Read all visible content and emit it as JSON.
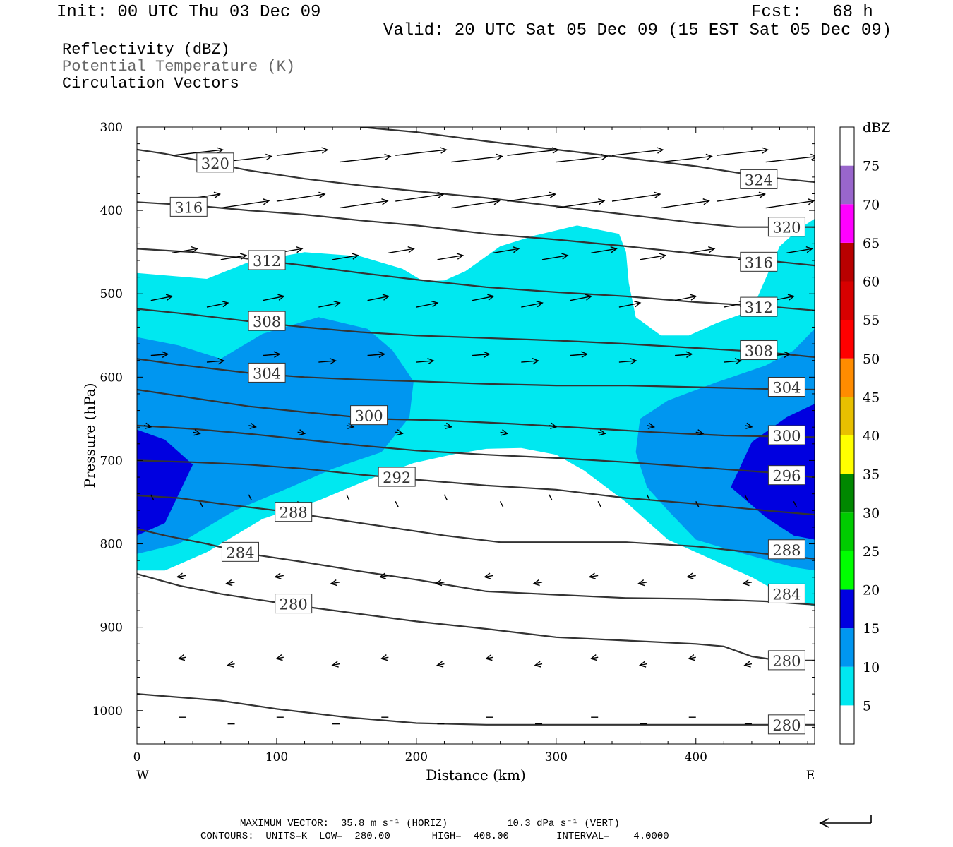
{
  "header": {
    "init": "Init: 00 UTC Thu 03 Dec 09",
    "fcst": "Fcst:   68 h",
    "valid": "Valid: 20 UTC Sat 05 Dec 09 (15 EST Sat 05 Dec 09)"
  },
  "fields": {
    "reflectivity": "Reflectivity (dBZ)",
    "theta": "Potential Temperature (K)",
    "vectors": "Circulation Vectors"
  },
  "footer": {
    "line1": "MAXIMUM VECTOR:  35.8 m s⁻¹ (HORIZ)          10.3 dPa s⁻¹ (VERT)",
    "line2": "CONTOURS:  UNITS=K  LOW=  280.00       HIGH=  408.00        INTERVAL=    4.0000"
  },
  "colors": {
    "c5": "#00e8f0",
    "c10": "#0096f0",
    "c15": "#0000e0",
    "contour": "#333333"
  },
  "chart_data": {
    "type": "cross-section",
    "xlabel": "Distance (km)",
    "ylabel": "Pressure (hPa)",
    "x_ticks": [
      0,
      100,
      200,
      300,
      400
    ],
    "x_end_labels": [
      "W",
      "E"
    ],
    "y_ticks": [
      300,
      400,
      500,
      600,
      700,
      800,
      900,
      1000
    ],
    "xlim": [
      0,
      485
    ],
    "ylim": [
      1040,
      300
    ],
    "colorbar": {
      "unit": "dBZ",
      "levels": [
        5,
        10,
        15,
        20,
        25,
        30,
        35,
        40,
        45,
        50,
        55,
        60,
        65,
        70,
        75
      ],
      "colors": [
        "#00e8f0",
        "#0096f0",
        "#0000e0",
        "#00ff00",
        "#00cc00",
        "#008800",
        "#ffff00",
        "#e8c000",
        "#ff8c00",
        "#ff0000",
        "#d80000",
        "#b80000",
        "#ff00ff",
        "#9966cc",
        "#ffffff"
      ]
    },
    "reflectivity_regions": [
      {
        "dbz": 5,
        "points": [
          [
            0,
            475
          ],
          [
            50,
            482
          ],
          [
            80,
            462
          ],
          [
            120,
            450
          ],
          [
            160,
            455
          ],
          [
            190,
            470
          ],
          [
            205,
            485
          ],
          [
            220,
            484
          ],
          [
            235,
            473
          ],
          [
            260,
            443
          ],
          [
            285,
            430
          ],
          [
            315,
            418
          ],
          [
            345,
            428
          ],
          [
            350,
            450
          ],
          [
            352,
            487
          ],
          [
            357,
            528
          ],
          [
            375,
            550
          ],
          [
            395,
            550
          ],
          [
            415,
            535
          ],
          [
            440,
            520
          ],
          [
            460,
            443
          ],
          [
            474,
            422
          ],
          [
            485,
            410
          ],
          [
            485,
            875
          ],
          [
            470,
            868
          ],
          [
            440,
            840
          ],
          [
            380,
            795
          ],
          [
            350,
            750
          ],
          [
            320,
            712
          ],
          [
            300,
            693
          ],
          [
            275,
            685
          ],
          [
            250,
            686
          ],
          [
            228,
            692
          ],
          [
            198,
            703
          ],
          [
            170,
            720
          ],
          [
            130,
            748
          ],
          [
            90,
            770
          ],
          [
            50,
            810
          ],
          [
            20,
            832
          ],
          [
            0,
            832
          ]
        ]
      },
      {
        "dbz": 10,
        "points": [
          [
            0,
            552
          ],
          [
            30,
            562
          ],
          [
            60,
            578
          ],
          [
            90,
            548
          ],
          [
            130,
            528
          ],
          [
            165,
            542
          ],
          [
            183,
            568
          ],
          [
            198,
            605
          ],
          [
            195,
            648
          ],
          [
            175,
            690
          ],
          [
            140,
            710
          ],
          [
            110,
            732
          ],
          [
            70,
            760
          ],
          [
            30,
            800
          ],
          [
            0,
            812
          ],
          [
            0,
            552
          ]
        ]
      },
      {
        "dbz": 10,
        "points": [
          [
            485,
            542
          ],
          [
            470,
            568
          ],
          [
            450,
            586
          ],
          [
            415,
            606
          ],
          [
            380,
            628
          ],
          [
            360,
            650
          ],
          [
            357,
            690
          ],
          [
            365,
            732
          ],
          [
            380,
            760
          ],
          [
            400,
            795
          ],
          [
            430,
            810
          ],
          [
            470,
            828
          ],
          [
            485,
            832
          ]
        ]
      },
      {
        "dbz": 15,
        "points": [
          [
            0,
            663
          ],
          [
            20,
            675
          ],
          [
            40,
            705
          ],
          [
            20,
            775
          ],
          [
            0,
            790
          ]
        ]
      },
      {
        "dbz": 15,
        "points": [
          [
            485,
            632
          ],
          [
            465,
            648
          ],
          [
            440,
            678
          ],
          [
            425,
            732
          ],
          [
            450,
            768
          ],
          [
            470,
            790
          ],
          [
            485,
            795
          ]
        ]
      }
    ],
    "theta_contours": [
      {
        "value": 280,
        "points": [
          [
            0,
            980
          ],
          [
            60,
            988
          ],
          [
            100,
            998
          ],
          [
            150,
            1008
          ],
          [
            200,
            1015
          ],
          [
            250,
            1017
          ],
          [
            300,
            1017
          ],
          [
            350,
            1017
          ],
          [
            400,
            1017
          ],
          [
            450,
            1017
          ],
          [
            485,
            1017
          ]
        ],
        "labels": [
          [
            465,
            1017
          ]
        ]
      },
      {
        "value": 280,
        "points": [
          [
            0,
            836
          ],
          [
            30,
            850
          ],
          [
            60,
            860
          ],
          [
            110,
            873
          ],
          [
            150,
            882
          ],
          [
            200,
            893
          ],
          [
            250,
            902
          ],
          [
            300,
            912
          ],
          [
            350,
            916
          ],
          [
            400,
            920
          ],
          [
            420,
            923
          ],
          [
            440,
            935
          ],
          [
            460,
            940
          ],
          [
            485,
            940
          ]
        ],
        "labels": [
          [
            112,
            872
          ],
          [
            465,
            940
          ]
        ]
      },
      {
        "value": 284,
        "points": [
          [
            0,
            782
          ],
          [
            20,
            790
          ],
          [
            50,
            800
          ],
          [
            80,
            812
          ],
          [
            120,
            822
          ],
          [
            160,
            833
          ],
          [
            200,
            843
          ],
          [
            250,
            857
          ],
          [
            300,
            861
          ],
          [
            350,
            865
          ],
          [
            400,
            866
          ],
          [
            450,
            869
          ],
          [
            485,
            873
          ]
        ],
        "labels": [
          [
            74,
            810
          ],
          [
            465,
            860
          ]
        ]
      },
      {
        "value": 288,
        "points": [
          [
            0,
            742
          ],
          [
            30,
            745
          ],
          [
            60,
            752
          ],
          [
            100,
            760
          ],
          [
            140,
            770
          ],
          [
            180,
            780
          ],
          [
            220,
            790
          ],
          [
            260,
            798
          ],
          [
            300,
            798
          ],
          [
            350,
            798
          ],
          [
            400,
            803
          ],
          [
            450,
            812
          ],
          [
            485,
            818
          ]
        ],
        "labels": [
          [
            112,
            762
          ],
          [
            465,
            807
          ]
        ]
      },
      {
        "value": 292,
        "points": [
          [
            0,
            700
          ],
          [
            40,
            702
          ],
          [
            80,
            705
          ],
          [
            120,
            710
          ],
          [
            160,
            717
          ],
          [
            200,
            723
          ],
          [
            250,
            730
          ],
          [
            300,
            735
          ],
          [
            350,
            745
          ],
          [
            400,
            752
          ],
          [
            450,
            760
          ],
          [
            485,
            765
          ]
        ],
        "labels": [
          [
            186,
            720
          ]
        ]
      },
      {
        "value": 296,
        "points": [
          [
            0,
            658
          ],
          [
            40,
            662
          ],
          [
            80,
            668
          ],
          [
            120,
            675
          ],
          [
            160,
            682
          ],
          [
            200,
            688
          ],
          [
            250,
            693
          ],
          [
            300,
            697
          ],
          [
            350,
            702
          ],
          [
            400,
            708
          ],
          [
            450,
            714
          ],
          [
            485,
            720
          ]
        ],
        "labels": [
          [
            465,
            718
          ]
        ]
      },
      {
        "value": 300,
        "points": [
          [
            0,
            615
          ],
          [
            40,
            625
          ],
          [
            80,
            635
          ],
          [
            120,
            642
          ],
          [
            170,
            650
          ],
          [
            220,
            652
          ],
          [
            270,
            656
          ],
          [
            320,
            661
          ],
          [
            370,
            666
          ],
          [
            420,
            670
          ],
          [
            485,
            672
          ]
        ],
        "labels": [
          [
            166,
            646
          ],
          [
            465,
            670
          ]
        ]
      },
      {
        "value": 304,
        "points": [
          [
            0,
            578
          ],
          [
            30,
            585
          ],
          [
            80,
            595
          ],
          [
            120,
            600
          ],
          [
            160,
            603
          ],
          [
            200,
            605
          ],
          [
            250,
            608
          ],
          [
            300,
            610
          ],
          [
            350,
            610
          ],
          [
            400,
            612
          ],
          [
            450,
            614
          ],
          [
            485,
            615
          ]
        ],
        "labels": [
          [
            93,
            595
          ],
          [
            465,
            612
          ]
        ]
      },
      {
        "value": 308,
        "points": [
          [
            0,
            518
          ],
          [
            40,
            525
          ],
          [
            80,
            533
          ],
          [
            120,
            540
          ],
          [
            160,
            546
          ],
          [
            200,
            550
          ],
          [
            250,
            553
          ],
          [
            300,
            556
          ],
          [
            350,
            560
          ],
          [
            400,
            565
          ],
          [
            450,
            570
          ],
          [
            485,
            576
          ]
        ],
        "labels": [
          [
            93,
            533
          ],
          [
            445,
            568
          ]
        ]
      },
      {
        "value": 312,
        "points": [
          [
            0,
            446
          ],
          [
            40,
            450
          ],
          [
            80,
            458
          ],
          [
            120,
            466
          ],
          [
            160,
            475
          ],
          [
            200,
            483
          ],
          [
            250,
            492
          ],
          [
            300,
            498
          ],
          [
            350,
            503
          ],
          [
            400,
            510
          ],
          [
            450,
            515
          ],
          [
            485,
            520
          ]
        ],
        "labels": [
          [
            93,
            460
          ],
          [
            445,
            516
          ]
        ]
      },
      {
        "value": 316,
        "points": [
          [
            0,
            390
          ],
          [
            40,
            394
          ],
          [
            80,
            400
          ],
          [
            120,
            405
          ],
          [
            160,
            412
          ],
          [
            200,
            418
          ],
          [
            250,
            428
          ],
          [
            300,
            435
          ],
          [
            350,
            443
          ],
          [
            400,
            452
          ],
          [
            450,
            460
          ],
          [
            485,
            466
          ]
        ],
        "labels": [
          [
            37,
            396
          ],
          [
            445,
            462
          ]
        ]
      },
      {
        "value": 320,
        "points": [
          [
            0,
            327
          ],
          [
            20,
            332
          ],
          [
            50,
            342
          ],
          [
            80,
            352
          ],
          [
            120,
            362
          ],
          [
            160,
            370
          ],
          [
            200,
            377
          ],
          [
            250,
            385
          ],
          [
            300,
            395
          ],
          [
            350,
            405
          ],
          [
            400,
            415
          ],
          [
            430,
            420
          ],
          [
            485,
            420
          ]
        ],
        "labels": [
          [
            56,
            343
          ],
          [
            465,
            420
          ]
        ]
      },
      {
        "value": 324,
        "points": [
          [
            160,
            300
          ],
          [
            200,
            306
          ],
          [
            250,
            317
          ],
          [
            300,
            327
          ],
          [
            350,
            337
          ],
          [
            400,
            347
          ],
          [
            450,
            360
          ],
          [
            485,
            366
          ]
        ],
        "labels": [
          [
            445,
            363
          ]
        ]
      }
    ],
    "vectors_note": "Circulation vectors drawn as arrows over the section."
  }
}
